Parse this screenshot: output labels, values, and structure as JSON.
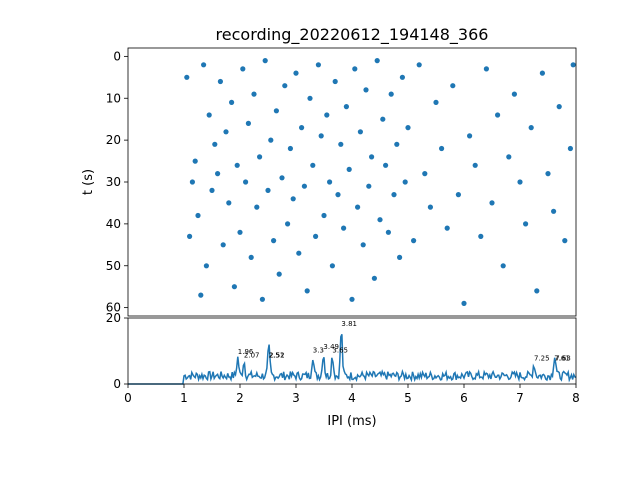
{
  "chart_data": [
    {
      "type": "scatter",
      "title": "recording_20220612_194148_366",
      "xlabel": "",
      "ylabel": "t (s)",
      "xlim": [
        0,
        8
      ],
      "ylim": [
        62,
        -2
      ],
      "y_inverted": true,
      "yticks": [
        0,
        10,
        20,
        30,
        40,
        50,
        60
      ],
      "color": "#1f77b4",
      "grid": false,
      "points": [
        [
          1.05,
          5
        ],
        [
          1.1,
          43
        ],
        [
          1.15,
          30
        ],
        [
          1.2,
          25
        ],
        [
          1.25,
          38
        ],
        [
          1.3,
          57
        ],
        [
          1.35,
          2
        ],
        [
          1.4,
          50
        ],
        [
          1.45,
          14
        ],
        [
          1.5,
          32
        ],
        [
          1.55,
          21
        ],
        [
          1.6,
          28
        ],
        [
          1.65,
          6
        ],
        [
          1.7,
          45
        ],
        [
          1.75,
          18
        ],
        [
          1.8,
          35
        ],
        [
          1.85,
          11
        ],
        [
          1.9,
          55
        ],
        [
          1.95,
          26
        ],
        [
          2.0,
          42
        ],
        [
          2.05,
          3
        ],
        [
          2.1,
          30
        ],
        [
          2.15,
          16
        ],
        [
          2.2,
          48
        ],
        [
          2.25,
          9
        ],
        [
          2.3,
          36
        ],
        [
          2.35,
          24
        ],
        [
          2.4,
          58
        ],
        [
          2.45,
          1
        ],
        [
          2.5,
          32
        ],
        [
          2.55,
          20
        ],
        [
          2.6,
          44
        ],
        [
          2.65,
          13
        ],
        [
          2.7,
          52
        ],
        [
          2.75,
          29
        ],
        [
          2.8,
          7
        ],
        [
          2.85,
          40
        ],
        [
          2.9,
          22
        ],
        [
          2.95,
          34
        ],
        [
          3.0,
          4
        ],
        [
          3.05,
          47
        ],
        [
          3.1,
          17
        ],
        [
          3.15,
          31
        ],
        [
          3.2,
          56
        ],
        [
          3.25,
          10
        ],
        [
          3.3,
          26
        ],
        [
          3.35,
          43
        ],
        [
          3.4,
          2
        ],
        [
          3.45,
          19
        ],
        [
          3.5,
          38
        ],
        [
          3.55,
          14
        ],
        [
          3.6,
          30
        ],
        [
          3.65,
          50
        ],
        [
          3.7,
          6
        ],
        [
          3.75,
          33
        ],
        [
          3.8,
          21
        ],
        [
          3.85,
          41
        ],
        [
          3.9,
          12
        ],
        [
          3.95,
          27
        ],
        [
          4.0,
          58
        ],
        [
          4.05,
          3
        ],
        [
          4.1,
          36
        ],
        [
          4.15,
          18
        ],
        [
          4.2,
          45
        ],
        [
          4.25,
          8
        ],
        [
          4.3,
          31
        ],
        [
          4.35,
          24
        ],
        [
          4.4,
          53
        ],
        [
          4.45,
          1
        ],
        [
          4.5,
          39
        ],
        [
          4.55,
          15
        ],
        [
          4.6,
          26
        ],
        [
          4.65,
          42
        ],
        [
          4.7,
          9
        ],
        [
          4.75,
          33
        ],
        [
          4.8,
          21
        ],
        [
          4.85,
          48
        ],
        [
          4.9,
          5
        ],
        [
          4.95,
          30
        ],
        [
          5.0,
          17
        ],
        [
          5.1,
          44
        ],
        [
          5.2,
          2
        ],
        [
          5.3,
          28
        ],
        [
          5.4,
          36
        ],
        [
          5.5,
          11
        ],
        [
          5.6,
          22
        ],
        [
          5.7,
          41
        ],
        [
          5.8,
          7
        ],
        [
          5.9,
          33
        ],
        [
          6.0,
          59
        ],
        [
          6.1,
          19
        ],
        [
          6.2,
          26
        ],
        [
          6.3,
          43
        ],
        [
          6.4,
          3
        ],
        [
          6.5,
          35
        ],
        [
          6.6,
          14
        ],
        [
          6.7,
          50
        ],
        [
          6.8,
          24
        ],
        [
          6.9,
          9
        ],
        [
          7.0,
          30
        ],
        [
          7.1,
          40
        ],
        [
          7.2,
          17
        ],
        [
          7.3,
          56
        ],
        [
          7.4,
          4
        ],
        [
          7.5,
          28
        ],
        [
          7.6,
          37
        ],
        [
          7.7,
          12
        ],
        [
          7.8,
          44
        ],
        [
          7.9,
          22
        ],
        [
          7.95,
          2
        ]
      ]
    },
    {
      "type": "line",
      "xlabel": "IPI (ms)",
      "ylabel": "",
      "xlim": [
        0,
        8
      ],
      "ylim": [
        0,
        20
      ],
      "xticks": [
        0,
        1,
        2,
        3,
        4,
        5,
        6,
        7,
        8
      ],
      "yticks": [
        0,
        20
      ],
      "color": "#1f77b4",
      "peak_annotations": [
        {
          "x": 1.96,
          "y": 8.5,
          "label": "1.96"
        },
        {
          "x": 2.07,
          "y": 7.5,
          "label": "2.07"
        },
        {
          "x": 2.51,
          "y": 7.5,
          "label": "2.51"
        },
        {
          "x": 2.52,
          "y": 7.5,
          "label": "2.52"
        },
        {
          "x": 3.3,
          "y": 9.0,
          "label": "3.3"
        },
        {
          "x": 3.49,
          "y": 10.0,
          "label": "3.49"
        },
        {
          "x": 3.65,
          "y": 9.0,
          "label": "3.65"
        },
        {
          "x": 3.81,
          "y": 17.0,
          "label": "3.81"
        },
        {
          "x": 7.25,
          "y": 6.5,
          "label": "7.25"
        },
        {
          "x": 7.61,
          "y": 6.5,
          "label": "7.61"
        },
        {
          "x": 7.63,
          "y": 6.5,
          "label": "7.63"
        }
      ]
    }
  ]
}
